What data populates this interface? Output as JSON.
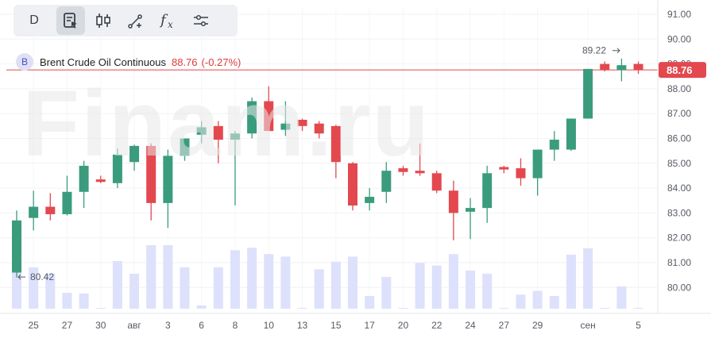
{
  "toolbar": {
    "period_label": "D",
    "icons": [
      "chart-settings-icon",
      "candlestick-icon",
      "drawing-tool-icon",
      "indicators-fx-icon",
      "sliders-icon"
    ]
  },
  "legend": {
    "badge": "B",
    "symbol": "Brent Crude Oil Continuous",
    "price": "88.76",
    "change": "(-0.27%)"
  },
  "watermark": "Finam.ru",
  "colors": {
    "up": "#3a9c7d",
    "down": "#e3484e",
    "volume": "#dde1fb",
    "price_line": "#e3484e"
  },
  "chart_data": {
    "type": "candlestick",
    "ylim": [
      79,
      91.3
    ],
    "yticks": [
      "91.00",
      "90.00",
      "89.00",
      "88.00",
      "87.00",
      "86.00",
      "85.00",
      "84.00",
      "83.00",
      "82.00",
      "81.00",
      "80.00"
    ],
    "xticks": [
      "25",
      "27",
      "30",
      "авг",
      "3",
      "6",
      "8",
      "10",
      "13",
      "15",
      "17",
      "20",
      "22",
      "24",
      "27",
      "29",
      "сен",
      "5"
    ],
    "last_price_label": "88.76",
    "last_price": 88.76,
    "high_label": "89.22",
    "high_value": 89.22,
    "low_label": "80.42",
    "low_value": 80.42,
    "candles": [
      {
        "o": 80.6,
        "h": 83.1,
        "l": 80.4,
        "c": 82.7,
        "v": 0.9
      },
      {
        "o": 82.8,
        "h": 83.9,
        "l": 82.3,
        "c": 83.25,
        "v": 0.65
      },
      {
        "o": 83.25,
        "h": 83.8,
        "l": 82.7,
        "c": 82.95,
        "v": 0.55
      },
      {
        "o": 82.95,
        "h": 84.5,
        "l": 82.9,
        "c": 83.85,
        "v": 0.25
      },
      {
        "o": 83.85,
        "h": 85.1,
        "l": 83.2,
        "c": 84.9,
        "v": 0.24
      },
      {
        "o": 84.35,
        "h": 84.5,
        "l": 84.2,
        "c": 84.25,
        "v": 0.0
      },
      {
        "o": 84.2,
        "h": 85.6,
        "l": 84.0,
        "c": 85.35,
        "v": 0.75
      },
      {
        "o": 85.05,
        "h": 85.75,
        "l": 84.7,
        "c": 85.7,
        "v": 0.55
      },
      {
        "o": 85.7,
        "h": 85.8,
        "l": 82.7,
        "c": 83.4,
        "v": 1.0
      },
      {
        "o": 83.4,
        "h": 85.55,
        "l": 82.4,
        "c": 85.3,
        "v": 1.0
      },
      {
        "o": 85.3,
        "h": 86.0,
        "l": 85.1,
        "c": 86.0,
        "v": 0.65
      },
      {
        "o": 86.15,
        "h": 86.7,
        "l": 85.8,
        "c": 86.45,
        "v": 0.05
      },
      {
        "o": 86.5,
        "h": 86.7,
        "l": 85.0,
        "c": 85.95,
        "v": 0.65
      },
      {
        "o": 85.95,
        "h": 86.3,
        "l": 83.3,
        "c": 86.2,
        "v": 0.92
      },
      {
        "o": 86.2,
        "h": 87.65,
        "l": 86.0,
        "c": 87.5,
        "v": 0.96
      },
      {
        "o": 87.5,
        "h": 88.1,
        "l": 86.3,
        "c": 86.3,
        "v": 0.86
      },
      {
        "o": 86.35,
        "h": 87.5,
        "l": 86.1,
        "c": 86.6,
        "v": 0.82
      },
      {
        "o": 86.75,
        "h": 86.8,
        "l": 86.3,
        "c": 86.5,
        "v": 0.0
      },
      {
        "o": 86.6,
        "h": 86.7,
        "l": 86.0,
        "c": 86.2,
        "v": 0.62
      },
      {
        "o": 86.5,
        "h": 86.55,
        "l": 84.4,
        "c": 85.05,
        "v": 0.74
      },
      {
        "o": 85.0,
        "h": 85.05,
        "l": 83.1,
        "c": 83.3,
        "v": 0.82
      },
      {
        "o": 83.4,
        "h": 84.0,
        "l": 83.1,
        "c": 83.65,
        "v": 0.2
      },
      {
        "o": 83.85,
        "h": 85.05,
        "l": 83.4,
        "c": 84.7,
        "v": 0.5
      },
      {
        "o": 84.8,
        "h": 84.9,
        "l": 84.5,
        "c": 84.65,
        "v": 0.0
      },
      {
        "o": 84.7,
        "h": 85.8,
        "l": 84.5,
        "c": 84.6,
        "v": 0.72
      },
      {
        "o": 84.6,
        "h": 84.7,
        "l": 83.8,
        "c": 83.9,
        "v": 0.68
      },
      {
        "o": 83.9,
        "h": 84.3,
        "l": 81.9,
        "c": 83.0,
        "v": 0.86
      },
      {
        "o": 83.05,
        "h": 83.6,
        "l": 81.95,
        "c": 83.2,
        "v": 0.6
      },
      {
        "o": 83.2,
        "h": 84.9,
        "l": 82.6,
        "c": 84.6,
        "v": 0.55
      },
      {
        "o": 84.85,
        "h": 84.9,
        "l": 84.6,
        "c": 84.75,
        "v": 0.0
      },
      {
        "o": 84.8,
        "h": 85.2,
        "l": 84.1,
        "c": 84.4,
        "v": 0.22
      },
      {
        "o": 84.4,
        "h": 85.5,
        "l": 83.7,
        "c": 85.55,
        "v": 0.28
      },
      {
        "o": 85.55,
        "h": 86.3,
        "l": 85.1,
        "c": 85.95,
        "v": 0.2
      },
      {
        "o": 85.55,
        "h": 86.8,
        "l": 85.5,
        "c": 86.8,
        "v": 0.85
      },
      {
        "o": 86.8,
        "h": 88.8,
        "l": 86.8,
        "c": 88.8,
        "v": 0.95
      },
      {
        "o": 89.0,
        "h": 89.1,
        "l": 88.7,
        "c": 88.75,
        "v": 0.0
      },
      {
        "o": 88.75,
        "h": 89.22,
        "l": 88.3,
        "c": 88.95,
        "v": 0.35
      },
      {
        "o": 89.0,
        "h": 89.1,
        "l": 88.6,
        "c": 88.76,
        "v": 0.0
      }
    ]
  }
}
